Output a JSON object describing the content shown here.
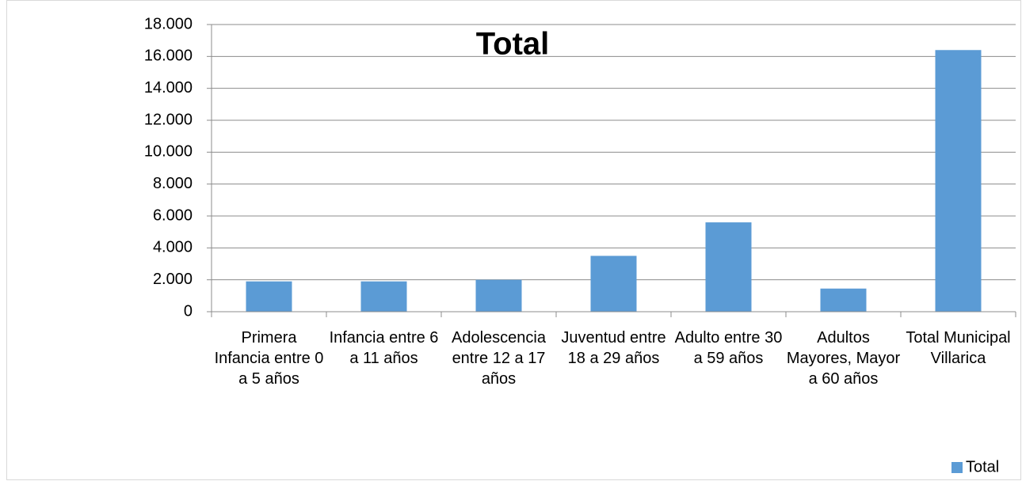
{
  "chart_data": {
    "type": "bar",
    "title": "Total",
    "categories": [
      "Primera Infancia entre 0 a 5 años",
      "Infancia entre 6 a 11 años",
      "Adolescencia entre 12 a 17 años",
      "Juventud entre 18 a 29 años",
      "Adulto entre 30 a 59 años",
      "Adultos Mayores, Mayor a 60 años",
      "Total Municipal Villarica"
    ],
    "series": [
      {
        "name": "Total",
        "color": "#5b9bd5",
        "values": [
          1900,
          1900,
          2000,
          3500,
          5600,
          1450,
          16400
        ]
      }
    ],
    "ylim": [
      0,
      18000
    ],
    "yticks": [
      0,
      {
        "value": 2000,
        "label": "2.000"
      },
      {
        "value": 4000,
        "label": "4.000"
      },
      {
        "value": 6000,
        "label": "6.000"
      },
      {
        "value": 8000,
        "label": "8.000"
      },
      {
        "value": 10000,
        "label": "10.000"
      },
      {
        "value": 12000,
        "label": "12.000"
      },
      {
        "value": 14000,
        "label": "14.000"
      },
      {
        "value": 16000,
        "label": "16.000"
      },
      {
        "value": 18000,
        "label": "18.000"
      }
    ],
    "grid": true,
    "legend": "bottom-right"
  }
}
